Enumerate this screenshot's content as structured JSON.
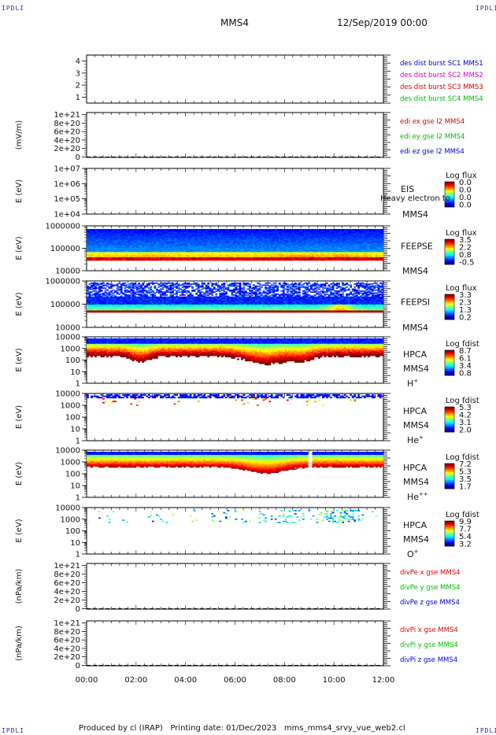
{
  "header": {
    "corner_label": "IPDLI",
    "title": "MMS4",
    "date": "12/Sep/2019 00:00"
  },
  "footer": {
    "producer": "Produced by cl (IRAP)",
    "printing_date": "Printing date: 01/Dec/2023",
    "filename": "mms_mms4_srvy_vue_web2.cl"
  },
  "chart_data": {
    "type": "multi-panel",
    "x_ticks": [
      "00:00",
      "02:00",
      "04:00",
      "06:00",
      "08:00",
      "10:00",
      "12:00"
    ],
    "panels": [
      {
        "id": "burst",
        "type": "line",
        "ylim": [
          0.5,
          4.5
        ],
        "ticks": [
          "4",
          "3",
          "2",
          "1"
        ],
        "tick_values": [
          4,
          3,
          2,
          1
        ],
        "legend": [
          {
            "text": "des dist burst SC1 MMS1",
            "color": "#0000cc"
          },
          {
            "text": "des dist burst SC2 MMS2",
            "color": "#cc00cc"
          },
          {
            "text": "des dist burst SC3 MMS3",
            "color": "#dd0000"
          },
          {
            "text": "des dist burst SC4 MMS4",
            "color": "#00bb00"
          }
        ]
      },
      {
        "id": "edi",
        "type": "line",
        "ylabel": "(mV/m)",
        "ticks": [
          "1e+21",
          "8e+20",
          "6e+20",
          "4e+20",
          "2e+20",
          "0"
        ],
        "tick_values": [
          1e+21,
          8e+20,
          6e+20,
          4e+20,
          2e+20,
          0
        ],
        "ylim": [
          -1e+19,
          1.05e+21
        ],
        "zero_dashed": true,
        "legend": [
          {
            "text": "edi ex gse l2 MMS4",
            "color": "#dd0000"
          },
          {
            "text": "edi ey gse l2 MMS4",
            "color": "#00bb00"
          },
          {
            "text": "edi ez gse l2 MMS4",
            "color": "#0000cc"
          }
        ]
      },
      {
        "id": "eis",
        "type": "heatmap",
        "ylabel": "E (eV)",
        "ticks": [
          "1e+07",
          "1e+06",
          "1e+05",
          "1e+04"
        ],
        "instrument": [
          "EIS",
          "MMS4"
        ],
        "overlay_text": "Heavy electron to",
        "colorbar_title": "Log flux",
        "colorbar_labels": [
          "0.0",
          "0.0",
          "0.0",
          "0.0"
        ]
      },
      {
        "id": "feepse",
        "type": "heatmap",
        "ylabel": "E (eV)",
        "ticks": [
          "1000000",
          "100000",
          "10000"
        ],
        "instrument": [
          "FEEPSE",
          "MMS4"
        ],
        "colorbar_title": "Log flux",
        "colorbar_labels": [
          "3.5",
          "2.2",
          "0.8",
          "-0.5"
        ]
      },
      {
        "id": "feepsi",
        "type": "heatmap",
        "ylabel": "E (eV)",
        "ticks": [
          "1000000",
          "100000",
          "10000"
        ],
        "instrument": [
          "FEEPSI",
          "MMS4"
        ],
        "colorbar_title": "Log flux",
        "colorbar_labels": [
          "3.3",
          "2.3",
          "1.3",
          "0.2"
        ]
      },
      {
        "id": "hpca_h",
        "type": "heatmap",
        "ylabel": "E (eV)",
        "ticks": [
          "10000",
          "1000",
          "100",
          "10",
          "1"
        ],
        "instrument": [
          "HPCA",
          "MMS4"
        ],
        "species": "H",
        "species_sup": "+",
        "colorbar_title": "Log fdist",
        "colorbar_labels": [
          "8.7",
          "6.1",
          "3.4",
          "0.8"
        ]
      },
      {
        "id": "hpca_he",
        "type": "heatmap",
        "ylabel": "E (eV)",
        "ticks": [
          "10000",
          "1000",
          "100",
          "10",
          "1"
        ],
        "instrument": [
          "HPCA",
          "MMS4"
        ],
        "species": "He",
        "species_sup": "+",
        "colorbar_title": "Log fdist",
        "colorbar_labels": [
          "5.3",
          "4.2",
          "3.1",
          "2.0"
        ]
      },
      {
        "id": "hpca_hepp",
        "type": "heatmap",
        "ylabel": "E (eV)",
        "ticks": [
          "10000",
          "1000",
          "100",
          "10",
          "1"
        ],
        "instrument": [
          "HPCA",
          "MMS4"
        ],
        "species": "He",
        "species_sup": "++",
        "colorbar_title": "Log fdist",
        "colorbar_labels": [
          "7.2",
          "5.3",
          "3.5",
          "1.7"
        ]
      },
      {
        "id": "hpca_o",
        "type": "heatmap",
        "ylabel": "E (eV)",
        "ticks": [
          "10000",
          "1000",
          "100",
          "10",
          "1"
        ],
        "instrument": [
          "HPCA",
          "MMS4"
        ],
        "species": "O",
        "species_sup": "+",
        "colorbar_title": "Log fdist",
        "colorbar_labels": [
          "9.9",
          "7.7",
          "5.4",
          "3.2"
        ]
      },
      {
        "id": "divpe",
        "type": "line",
        "ylabel": "(nPa/km)",
        "ticks": [
          "1e+21",
          "8e+20",
          "6e+20",
          "4e+20",
          "2e+20",
          "0"
        ],
        "tick_values": [
          1e+21,
          8e+20,
          6e+20,
          4e+20,
          2e+20,
          0
        ],
        "ylim": [
          -1e+19,
          1.05e+21
        ],
        "zero_dashed": true,
        "legend": [
          {
            "text": "divPe x gse MMS4",
            "color": "#dd0000"
          },
          {
            "text": "divPe y gse MMS4",
            "color": "#00bb00"
          },
          {
            "text": "divPe z gse MMS4",
            "color": "#0000cc"
          }
        ]
      },
      {
        "id": "divpi",
        "type": "line",
        "ylabel": "(nPa/km)",
        "ticks": [
          "1e+21",
          "8e+20",
          "6e+20",
          "4e+20",
          "2e+20",
          "0"
        ],
        "tick_values": [
          1e+21,
          8e+20,
          6e+20,
          4e+20,
          2e+20,
          0
        ],
        "ylim": [
          -1e+19,
          1.05e+21
        ],
        "zero_dashed": true,
        "legend": [
          {
            "text": "divPi x gse MMS4",
            "color": "#dd0000"
          },
          {
            "text": "divPi y gse MMS4",
            "color": "#00bb00"
          },
          {
            "text": "divPi z gse MMS4",
            "color": "#0000cc"
          }
        ]
      }
    ]
  }
}
